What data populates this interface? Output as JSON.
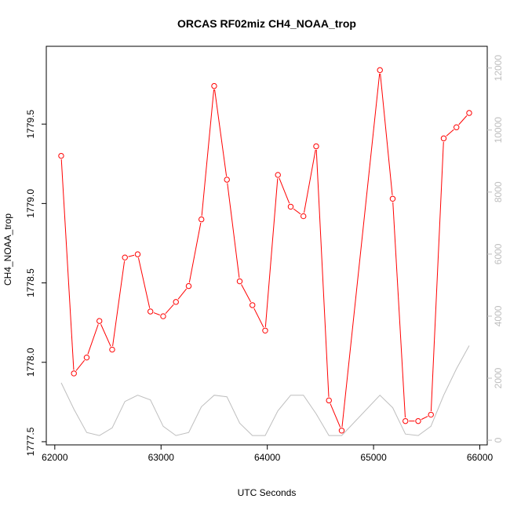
{
  "chart_data": {
    "type": "line",
    "title": "ORCAS RF02miz CH4_NOAA_trop",
    "xlabel": "UTC Seconds",
    "ylabel": "CH4_NOAA_trop",
    "xlim": [
      61920,
      66070
    ],
    "ylim": [
      1777.48,
      1779.99
    ],
    "y2lim": [
      -150,
      12700
    ],
    "x_ticks": [
      "62000",
      "63000",
      "64000",
      "65000",
      "66000"
    ],
    "y_ticks": [
      "1777.5",
      "1778.0",
      "1778.5",
      "1779.0",
      "1779.5"
    ],
    "y2_ticks": [
      "0",
      "2000",
      "4000",
      "6000",
      "8000",
      "10000",
      "12000"
    ],
    "grid": false,
    "colors": {
      "main": "#ff0000",
      "secondary": "#bebebe",
      "axis": "#000000",
      "right_axis": "#bebebe"
    },
    "series": [
      {
        "axis": "left",
        "style": "line+circle-markers",
        "x": [
          62060,
          62180,
          62300,
          62420,
          62540,
          62660,
          62780,
          62900,
          63020,
          63140,
          63260,
          63380,
          63500,
          63620,
          63740,
          63860,
          63980,
          64100,
          64220,
          64340,
          64460,
          64580,
          64700,
          65060,
          65180,
          65300,
          65420,
          65540,
          65660,
          65780,
          65900
        ],
        "values": [
          1779.3,
          1777.93,
          1778.03,
          1778.26,
          1778.08,
          1778.66,
          1778.68,
          1778.32,
          1778.29,
          1778.38,
          1778.48,
          1778.9,
          1779.74,
          1779.15,
          1778.51,
          1778.36,
          1778.2,
          1779.18,
          1778.98,
          1778.92,
          1779.36,
          1777.76,
          1777.57,
          1779.84,
          1779.03,
          1777.63,
          1777.63,
          1777.67,
          1779.41,
          1779.48,
          1779.57
        ]
      },
      {
        "axis": "right",
        "style": "line",
        "x": [
          62060,
          62180,
          62300,
          62420,
          62540,
          62660,
          62780,
          62900,
          63020,
          63140,
          63260,
          63380,
          63500,
          63620,
          63740,
          63860,
          63980,
          64100,
          64220,
          64340,
          64460,
          64580,
          64700,
          65060,
          65180,
          65300,
          65420,
          65540,
          65660,
          65780,
          65900
        ],
        "values": [
          1850,
          1000,
          250,
          150,
          400,
          1250,
          1450,
          1300,
          450,
          150,
          250,
          1080,
          1450,
          1400,
          550,
          150,
          150,
          950,
          1450,
          1450,
          850,
          150,
          150,
          1450,
          1050,
          200,
          150,
          450,
          1450,
          2300,
          3050
        ]
      }
    ]
  }
}
